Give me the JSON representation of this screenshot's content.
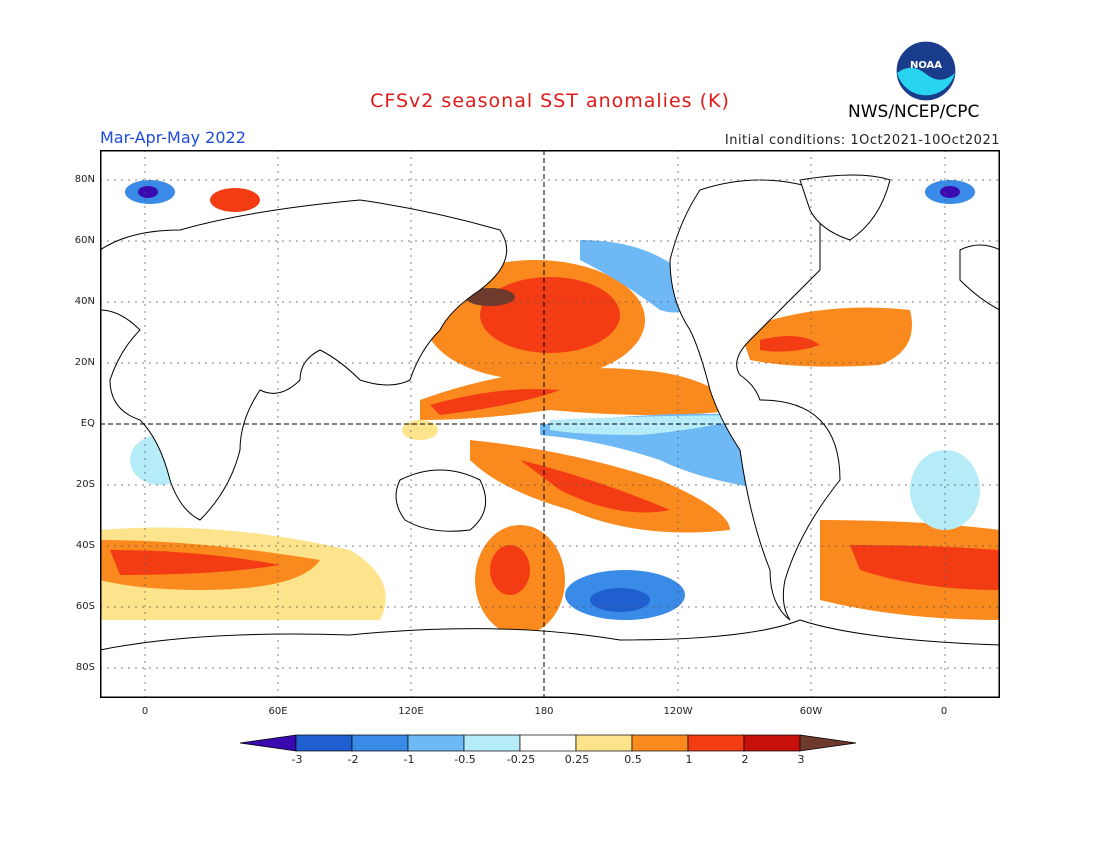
{
  "title": "CFSv2 seasonal SST anomalies (K)",
  "season": "Mar-Apr-May 2022",
  "initial_conditions": "Initial conditions: 1Oct2021-10Oct2021",
  "agency": "NWS/NCEP/CPC",
  "logo_text": "NOAA",
  "lat_labels": [
    "80N",
    "60N",
    "40N",
    "20N",
    "EQ",
    "20S",
    "40S",
    "60S",
    "80S"
  ],
  "lon_labels": [
    "0",
    "60E",
    "120E",
    "180",
    "120W",
    "60W",
    "0"
  ],
  "colorbar": {
    "labels": [
      "-3",
      "-2",
      "-1",
      "-0.5",
      "-0.25",
      "0.25",
      "0.5",
      "1",
      "2",
      "3"
    ],
    "colors": [
      "#3a0ab0",
      "#1f5fd0",
      "#3a8ae8",
      "#6db8f5",
      "#b5ecf7",
      "#ffffff",
      "#fde38c",
      "#fb8a1e",
      "#f43c14",
      "#c8100a",
      "#6e3a2c"
    ]
  }
}
